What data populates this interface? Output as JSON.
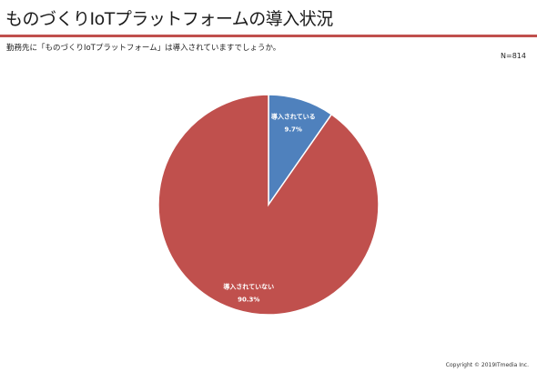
{
  "title": "ものづくりIoTプラットフォームの導入状況",
  "question": "勤務先に「ものづくりIoTプラットフォーム」は導入されていますでしょうか。",
  "sample_size": "N=814",
  "copyright": "Copyright © 2019ITmedia Inc.",
  "colors": {
    "accent_rule": "#c0504d",
    "label_text": "#ffffff",
    "slice_edge": "#ffffff"
  },
  "chart_data": {
    "type": "pie",
    "title": "",
    "start_angle_deg": 0,
    "direction": "clockwise",
    "slices": [
      {
        "label": "導入されている",
        "value": 9.7,
        "display": "9.7%",
        "color": "#4f81bd"
      },
      {
        "label": "導入されていない",
        "value": 90.3,
        "display": "90.3%",
        "color": "#c0504d"
      }
    ],
    "legend": "none"
  }
}
